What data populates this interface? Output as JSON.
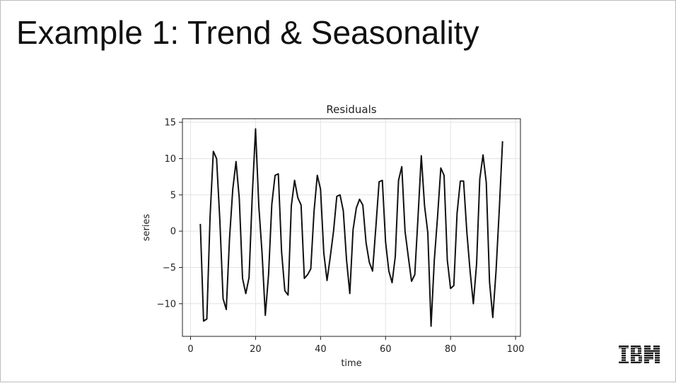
{
  "slide": {
    "title": "Example 1: Trend & Seasonality",
    "logo_text": "IBM"
  },
  "chart_data": {
    "type": "line",
    "title": "Residuals",
    "xlabel": "time",
    "ylabel": "series",
    "xlim": [
      -2.5,
      101.5
    ],
    "ylim": [
      -14.5,
      15.5
    ],
    "x_ticks": [
      0,
      20,
      40,
      60,
      80,
      100
    ],
    "y_ticks": [
      15,
      10,
      5,
      0,
      -5,
      -10
    ],
    "y_tick_labels": [
      "15",
      "10",
      "5",
      "0",
      "−5",
      "−10"
    ],
    "grid": true,
    "line_color": "#111111",
    "series": [
      {
        "x": [
          3,
          4,
          5,
          6,
          7,
          8,
          9,
          10,
          11,
          12,
          13,
          14,
          15,
          16,
          17,
          18,
          19,
          20,
          21,
          22,
          23,
          24,
          25,
          26,
          27,
          28,
          29,
          30,
          31,
          32,
          33,
          34,
          35,
          36,
          37,
          38,
          39,
          40,
          41,
          42,
          43,
          44,
          45,
          46,
          47,
          48,
          49,
          50,
          51,
          52,
          53,
          54,
          55,
          56,
          57,
          58,
          59,
          60,
          61,
          62,
          63,
          64,
          65,
          66,
          67,
          68,
          69,
          70,
          71,
          72,
          73,
          74,
          75,
          76,
          77,
          78,
          79,
          80,
          81,
          82,
          83,
          84,
          85,
          86,
          87,
          88,
          89,
          90,
          91,
          92,
          93,
          94,
          95,
          96
        ],
        "values": [
          1.0,
          -12.4,
          -12.1,
          2.0,
          11.0,
          10.0,
          1.5,
          -9.3,
          -10.8,
          -1.0,
          5.8,
          9.6,
          4.5,
          -6.5,
          -8.6,
          -6.4,
          5.0,
          14.1,
          3.5,
          -3.0,
          -11.6,
          -6.0,
          3.7,
          7.7,
          7.9,
          -2.8,
          -8.2,
          -8.8,
          3.5,
          7.0,
          4.6,
          3.6,
          -6.5,
          -6.0,
          -5.2,
          2.7,
          7.7,
          5.8,
          -3.0,
          -6.8,
          -3.5,
          0.0,
          4.8,
          5.0,
          2.8,
          -4.0,
          -8.6,
          0.2,
          3.2,
          4.4,
          3.6,
          -1.6,
          -4.3,
          -5.5,
          0.5,
          6.8,
          7.0,
          -1.5,
          -5.5,
          -7.1,
          -3.5,
          7.0,
          8.9,
          0.0,
          -3.5,
          -6.9,
          -6.0,
          2.0,
          10.4,
          3.5,
          -0.2,
          -13.1,
          -4.0,
          2.0,
          8.7,
          7.7,
          -4.0,
          -7.9,
          -7.5,
          2.5,
          6.9,
          6.9,
          -0.1,
          -5.5,
          -10.0,
          -4.5,
          7.2,
          10.5,
          6.7,
          -7.0,
          -11.9,
          -5.5,
          3.0,
          12.4
        ]
      }
    ]
  }
}
